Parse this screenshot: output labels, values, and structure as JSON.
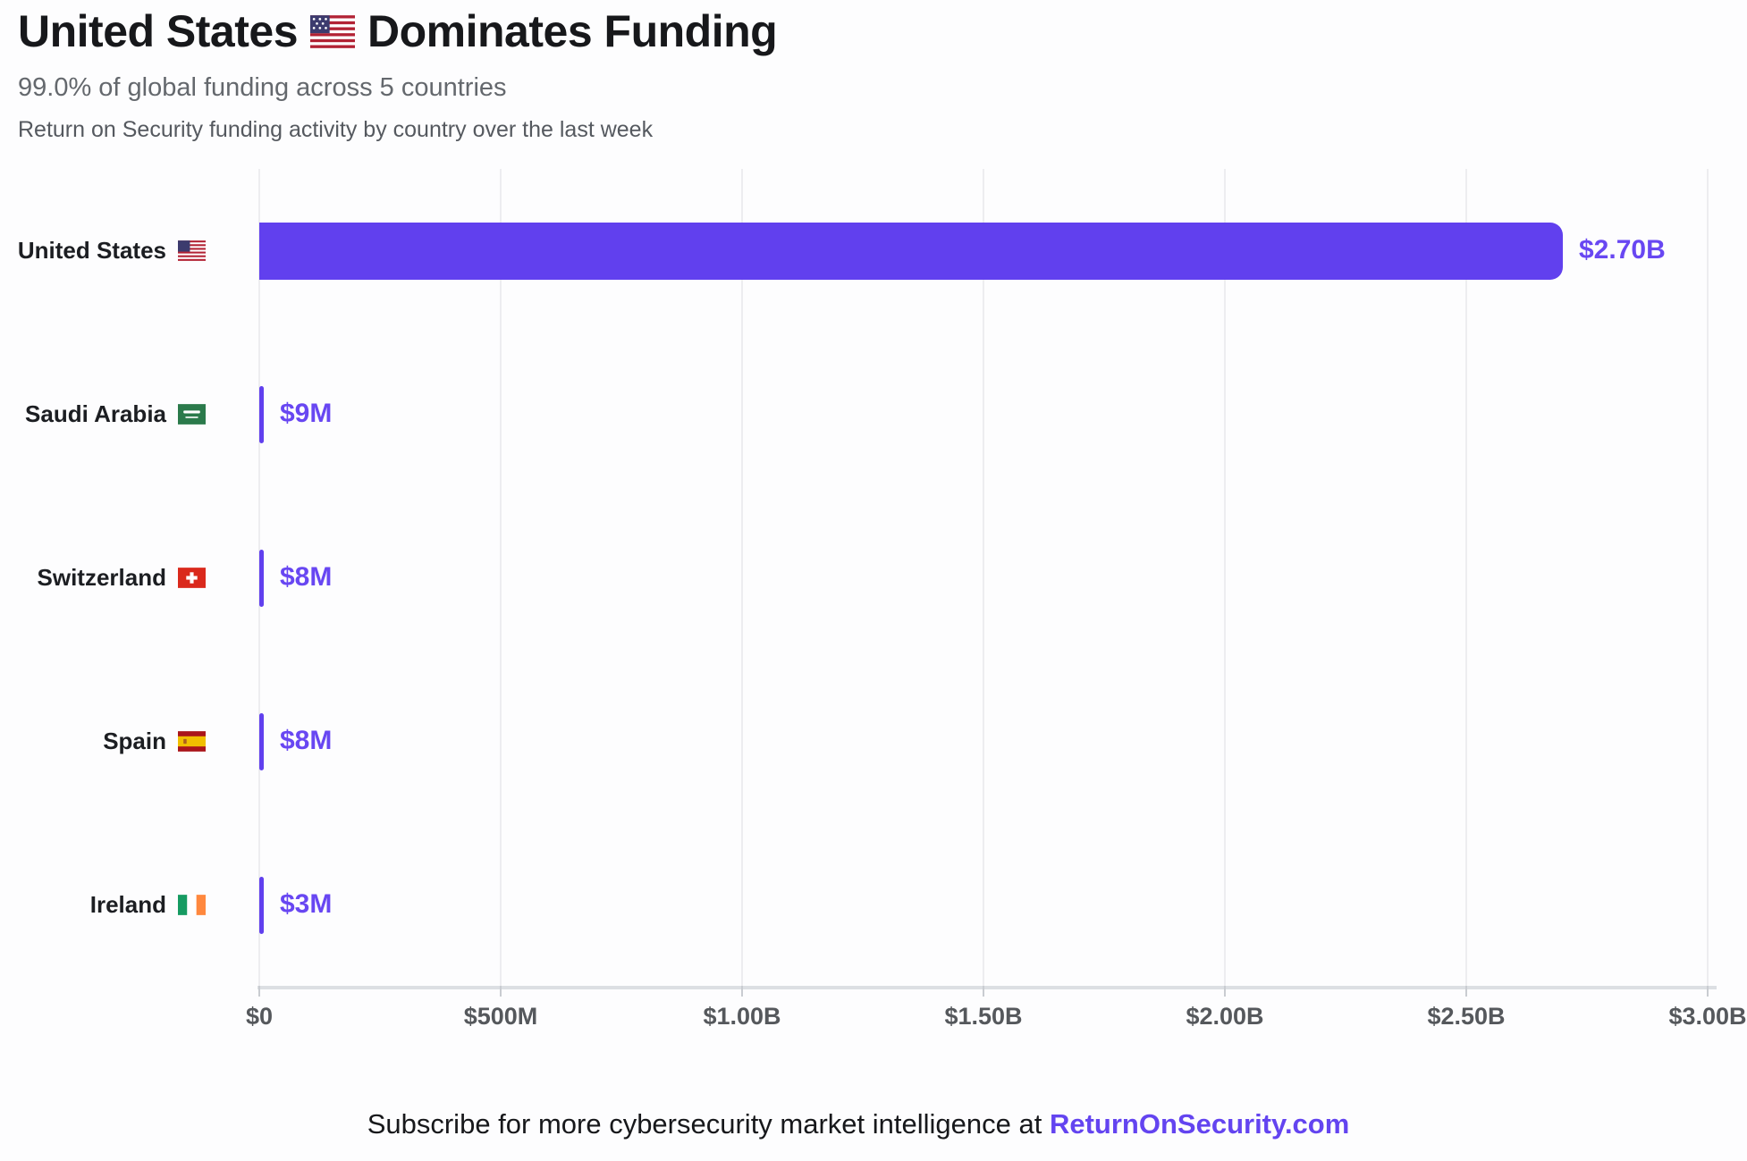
{
  "header": {
    "title_before_flag": "United States",
    "title_after_flag": "Dominates Funding",
    "subtitle": "99.0% of global funding across 5 countries",
    "description": "Return on Security funding activity by country over the last week"
  },
  "chart_data": {
    "type": "bar",
    "orientation": "horizontal",
    "title": "United States Dominates Funding",
    "subtitle": "99.0% of global funding across 5 countries",
    "categories": [
      "United States",
      "Saudi Arabia",
      "Switzerland",
      "Spain",
      "Ireland"
    ],
    "values_usd_millions": [
      2700,
      9,
      8,
      8,
      3
    ],
    "value_labels": [
      "$2.70B",
      "$9M",
      "$8M",
      "$8M",
      "$3M"
    ],
    "country_flag_icons": [
      "us-flag-icon",
      "saudi-arabia-flag-icon",
      "switzerland-flag-icon",
      "spain-flag-icon",
      "ireland-flag-icon"
    ],
    "xlabel": "",
    "ylabel": "",
    "x_axis": {
      "tick_labels": [
        "$0",
        "$500M",
        "$1.00B",
        "$1.50B",
        "$2.00B",
        "$2.50B",
        "$3.00B"
      ],
      "tick_values_usd_millions": [
        0,
        500,
        1000,
        1500,
        2000,
        2500,
        3000
      ],
      "range_usd_millions": [
        0,
        3000
      ]
    },
    "grid": true,
    "legend": false,
    "bar_color": "#6140ee",
    "value_label_color": "#6847f2"
  },
  "footer": {
    "text": "Subscribe for more cybersecurity market intelligence at ",
    "link": "ReturnOnSecurity.com"
  },
  "colors": {
    "background": "#fdfdfe",
    "accent_purple": "#6140ee",
    "gridline": "#ededf0",
    "axis_label": "#55585c"
  }
}
